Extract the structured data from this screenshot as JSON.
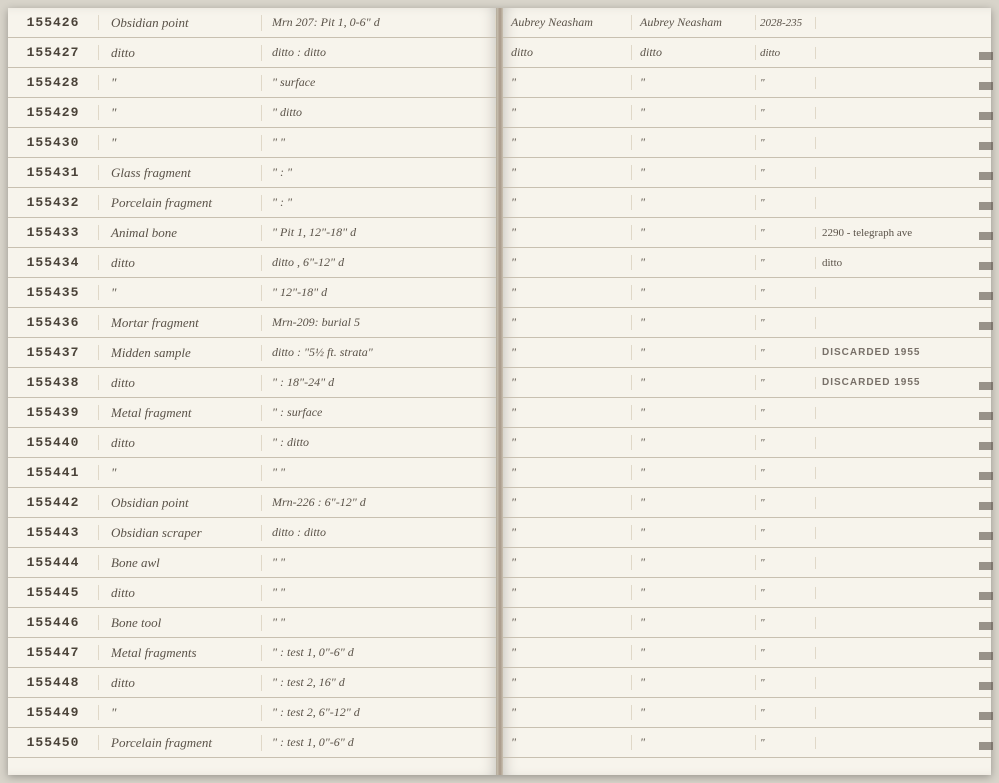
{
  "leftRows": [
    {
      "id": "155426",
      "desc": "Obsidian point",
      "loc": "Mrn 207: Pit 1, 0-6\" d"
    },
    {
      "id": "155427",
      "desc": "ditto",
      "loc": "ditto : ditto"
    },
    {
      "id": "155428",
      "desc": "\"",
      "loc": "\"     surface"
    },
    {
      "id": "155429",
      "desc": "\"",
      "loc": "\"     ditto"
    },
    {
      "id": "155430",
      "desc": "\"",
      "loc": "\"     \""
    },
    {
      "id": "155431",
      "desc": "Glass fragment",
      "loc": "\"   :   \""
    },
    {
      "id": "155432",
      "desc": "Porcelain fragment",
      "loc": "\"   :   \""
    },
    {
      "id": "155433",
      "desc": "Animal bone",
      "loc": "\"     Pit 1, 12\"-18\" d"
    },
    {
      "id": "155434",
      "desc": "ditto",
      "loc": "ditto   , 6\"-12\" d"
    },
    {
      "id": "155435",
      "desc": "\"",
      "loc": "\"     12\"-18\" d"
    },
    {
      "id": "155436",
      "desc": "Mortar fragment",
      "loc": "Mrn-209: burial 5"
    },
    {
      "id": "155437",
      "desc": "Midden sample",
      "loc": "ditto : \"5½ ft. strata\""
    },
    {
      "id": "155438",
      "desc": "ditto",
      "loc": "\"  : 18\"-24\" d"
    },
    {
      "id": "155439",
      "desc": "Metal fragment",
      "loc": "\"  : surface"
    },
    {
      "id": "155440",
      "desc": "ditto",
      "loc": "\"  : ditto"
    },
    {
      "id": "155441",
      "desc": "\"",
      "loc": "\"     \""
    },
    {
      "id": "155442",
      "desc": "Obsidian point",
      "loc": "Mrn-226 : 6\"-12\" d"
    },
    {
      "id": "155443",
      "desc": "Obsidian scraper",
      "loc": "ditto : ditto"
    },
    {
      "id": "155444",
      "desc": "Bone awl",
      "loc": "\"     \""
    },
    {
      "id": "155445",
      "desc": "ditto",
      "loc": "\"     \""
    },
    {
      "id": "155446",
      "desc": "Bone tool",
      "loc": "\"     \""
    },
    {
      "id": "155447",
      "desc": "Metal fragments",
      "loc": "\"  : test 1, 0\"-6\" d"
    },
    {
      "id": "155448",
      "desc": "ditto",
      "loc": "\"  : test 2, 16\" d"
    },
    {
      "id": "155449",
      "desc": "\"",
      "loc": "\"  : test 2, 6\"-12\" d"
    },
    {
      "id": "155450",
      "desc": "Porcelain fragment",
      "loc": "\"  : test 1, 0\"-6\" d"
    }
  ],
  "rightRows": [
    {
      "c1": "Aubrey Neasham",
      "c2": "Aubrey Neasham",
      "c3": "2028-235",
      "c4": ""
    },
    {
      "c1": "ditto",
      "c2": "ditto",
      "c3": "ditto",
      "c4": ""
    },
    {
      "c1": "\"",
      "c2": "\"",
      "c3": "\"",
      "c4": ""
    },
    {
      "c1": "\"",
      "c2": "\"",
      "c3": "\"",
      "c4": ""
    },
    {
      "c1": "\"",
      "c2": "\"",
      "c3": "\"",
      "c4": ""
    },
    {
      "c1": "\"",
      "c2": "\"",
      "c3": "\"",
      "c4": ""
    },
    {
      "c1": "\"",
      "c2": "\"",
      "c3": "\"",
      "c4": ""
    },
    {
      "c1": "\"",
      "c2": "\"",
      "c3": "\"",
      "c4": "2290 - telegraph ave"
    },
    {
      "c1": "\"",
      "c2": "\"",
      "c3": "\"",
      "c4": "ditto"
    },
    {
      "c1": "\"",
      "c2": "\"",
      "c3": "\"",
      "c4": ""
    },
    {
      "c1": "\"",
      "c2": "\"",
      "c3": "\"",
      "c4": ""
    },
    {
      "c1": "\"",
      "c2": "\"",
      "c3": "\"",
      "c4": "DISCARDED 1955",
      "disc": true
    },
    {
      "c1": "\"",
      "c2": "\"",
      "c3": "\"",
      "c4": "DISCARDED 1955",
      "disc": true
    },
    {
      "c1": "\"",
      "c2": "\"",
      "c3": "\"",
      "c4": ""
    },
    {
      "c1": "\"",
      "c2": "\"",
      "c3": "\"",
      "c4": ""
    },
    {
      "c1": "\"",
      "c2": "\"",
      "c3": "\"",
      "c4": ""
    },
    {
      "c1": "\"",
      "c2": "\"",
      "c3": "\"",
      "c4": ""
    },
    {
      "c1": "\"",
      "c2": "\"",
      "c3": "\"",
      "c4": ""
    },
    {
      "c1": "\"",
      "c2": "\"",
      "c3": "\"",
      "c4": ""
    },
    {
      "c1": "\"",
      "c2": "\"",
      "c3": "\"",
      "c4": ""
    },
    {
      "c1": "\"",
      "c2": "\"",
      "c3": "\"",
      "c4": ""
    },
    {
      "c1": "\"",
      "c2": "\"",
      "c3": "\"",
      "c4": ""
    },
    {
      "c1": "\"",
      "c2": "\"",
      "c3": "\"",
      "c4": ""
    },
    {
      "c1": "\"",
      "c2": "\"",
      "c3": "\"",
      "c4": ""
    },
    {
      "c1": "\"",
      "c2": "\"",
      "c3": "\"",
      "c4": ""
    }
  ],
  "edgeMarks": [
    22,
    52,
    82,
    112,
    142,
    172,
    202,
    232,
    262,
    292,
    352,
    382,
    412,
    442,
    472,
    502,
    532,
    562,
    592,
    622,
    652,
    682,
    712
  ]
}
